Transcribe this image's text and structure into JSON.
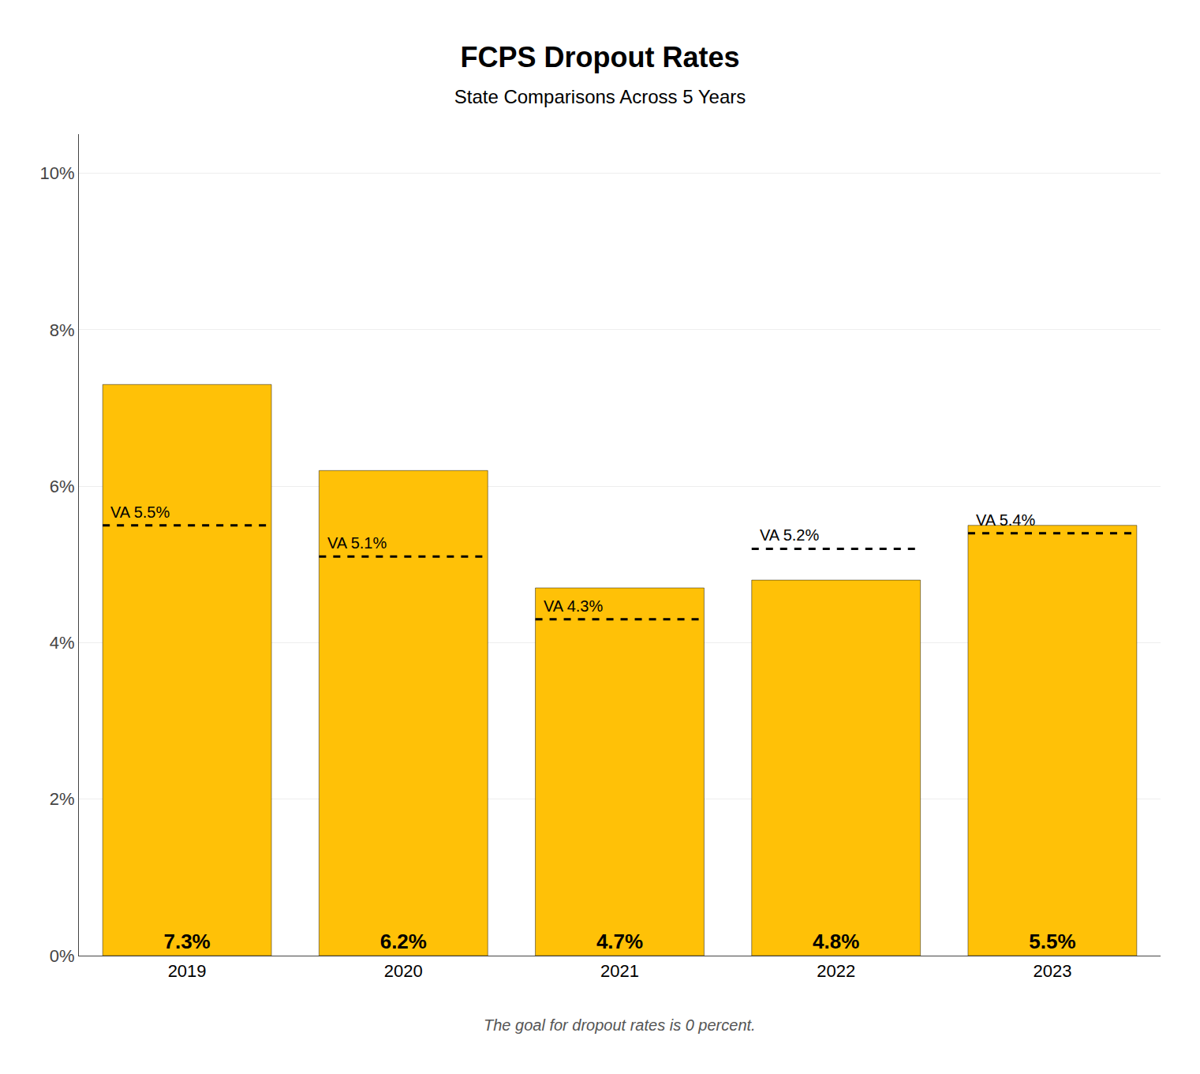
{
  "chart_data": {
    "type": "bar",
    "title": "FCPS Dropout Rates",
    "subtitle": "State Comparisons Across 5 Years",
    "annotations": [
      "The goal for dropout rates is 0 percent."
    ],
    "categories": [
      "2019",
      "2020",
      "2021",
      "2022",
      "2023"
    ],
    "series": [
      {
        "type": "bar",
        "color": "#FFC107",
        "values": [
          7.3,
          6.2,
          4.7,
          4.8,
          5.5
        ],
        "value_labels": [
          "7.3%",
          "6.2%",
          "4.7%",
          "4.8%",
          "5.5%"
        ]
      },
      {
        "type": "line",
        "line_style": "dashed",
        "color": "#000000",
        "values": [
          5.5,
          5.1,
          4.3,
          5.2,
          5.4
        ],
        "value_labels": [
          "VA 5.5%",
          "VA 5.1%",
          "VA 4.3%",
          "VA 5.2%",
          "VA 5.4%"
        ]
      }
    ],
    "data_labels": true,
    "grid": true,
    "ylim": [
      0,
      10.5
    ],
    "yticks": [
      {
        "value": 0,
        "label": "0%"
      },
      {
        "value": 2,
        "label": "2%"
      },
      {
        "value": 4,
        "label": "4%"
      },
      {
        "value": 6,
        "label": "6%"
      },
      {
        "value": 8,
        "label": "8%"
      },
      {
        "value": 10,
        "label": "10%"
      }
    ]
  }
}
